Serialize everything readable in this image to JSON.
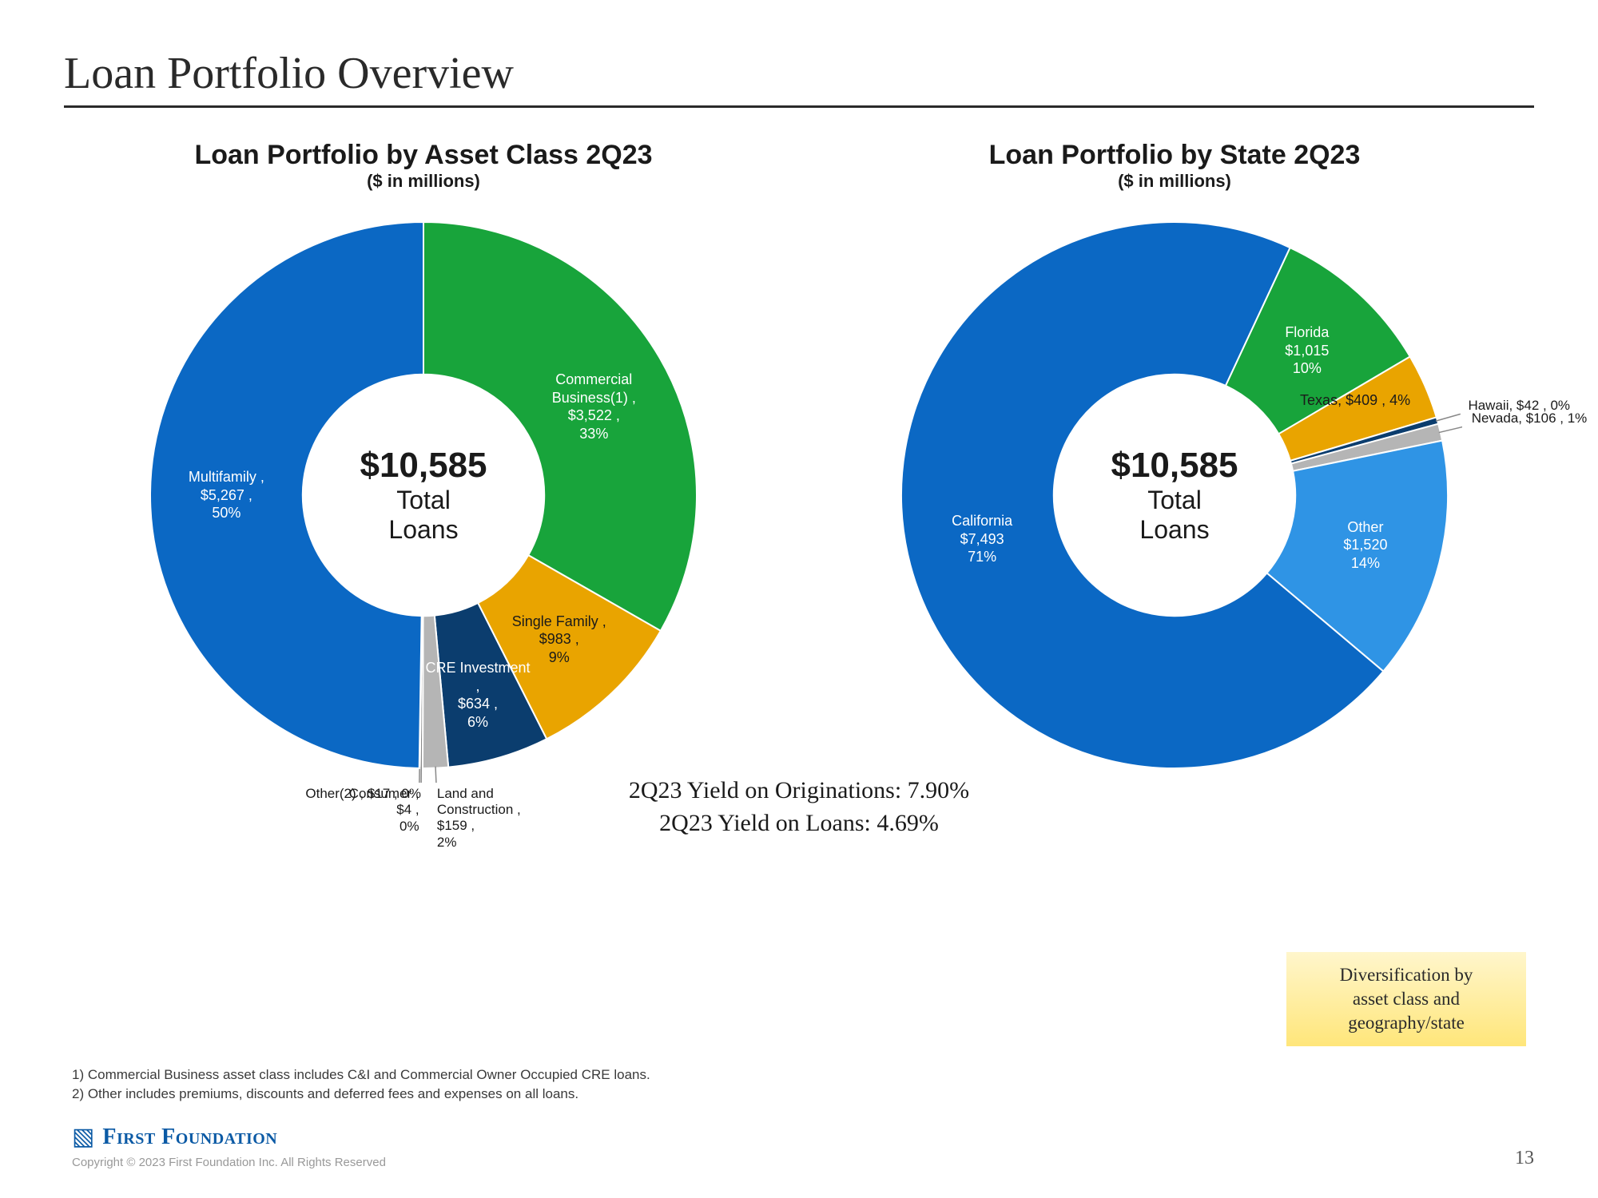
{
  "page_title": "Loan Portfolio Overview",
  "chart_left": {
    "type": "donut",
    "title": "Loan Portfolio by Asset Class 2Q23",
    "subtitle": "($ in millions)",
    "center_value": "$10,585",
    "center_text": "Total\nLoans",
    "inner_radius_ratio": 0.42,
    "outer_radius_ratio": 0.95,
    "start_angle_deg": -90,
    "background_color": "#ffffff",
    "slices": [
      {
        "name": "Commercial Business(1)",
        "value": 3522,
        "pct": 33,
        "color": "#18a43b",
        "label": "Commercial\nBusiness(1) ,\n$3,522 ,\n33%",
        "label_color": "#ffffff",
        "label_pos": "in"
      },
      {
        "name": "Single Family",
        "value": 983,
        "pct": 9,
        "color": "#e9a400",
        "label": "Single Family ,\n$983 ,\n9%",
        "label_color": "#1a1a1a",
        "label_pos": "in"
      },
      {
        "name": "CRE Investment",
        "value": 634,
        "pct": 6,
        "color": "#0b3d6e",
        "label": "CRE Investment ,\n$634 ,\n6%",
        "label_color": "#ffffff",
        "label_pos": "in"
      },
      {
        "name": "Land and Construction",
        "value": 159,
        "pct": 2,
        "color": "#b5b5b5",
        "label": "Land and\nConstruction ,\n$159 ,\n2%",
        "label_color": "#1a1a1a",
        "label_pos": "ext"
      },
      {
        "name": "Other(2)",
        "value": 17,
        "pct": 0,
        "color": "#8a8a8a",
        "label": "Other(2) , $17 , 0%",
        "label_color": "#1a1a1a",
        "label_pos": "ext"
      },
      {
        "name": "Consumer",
        "value": 4,
        "pct": 0,
        "color": "#c9c9c9",
        "label": "Consumer ,\n$4 ,\n0%",
        "label_color": "#1a1a1a",
        "label_pos": "ext"
      },
      {
        "name": "Multifamily",
        "value": 5267,
        "pct": 50,
        "color": "#0b68c4",
        "label": "Multifamily ,\n$5,267 ,\n50%",
        "label_color": "#ffffff",
        "label_pos": "in"
      }
    ]
  },
  "chart_right": {
    "type": "donut",
    "title": "Loan Portfolio by State 2Q23",
    "subtitle": "($ in millions)",
    "center_value": "$10,585",
    "center_text": "Total\nLoans",
    "inner_radius_ratio": 0.42,
    "outer_radius_ratio": 0.95,
    "start_angle_deg": -65,
    "background_color": "#ffffff",
    "slices": [
      {
        "name": "Florida",
        "value": 1015,
        "pct": 10,
        "color": "#18a43b",
        "label": "Florida\n$1,015\n10%",
        "label_color": "#ffffff",
        "label_pos": "in"
      },
      {
        "name": "Texas",
        "value": 409,
        "pct": 4,
        "color": "#e9a400",
        "label": "Texas, $409 , 4%",
        "label_color": "#1a1a1a",
        "label_pos": "in"
      },
      {
        "name": "Hawaii",
        "value": 42,
        "pct": 0,
        "color": "#0b3d6e",
        "label": "Hawaii, $42 , 0%",
        "label_color": "#1a1a1a",
        "label_pos": "ext"
      },
      {
        "name": "Nevada",
        "value": 106,
        "pct": 1,
        "color": "#b5b5b5",
        "label": "Nevada, $106 , 1%",
        "label_color": "#1a1a1a",
        "label_pos": "ext"
      },
      {
        "name": "Other",
        "value": 1520,
        "pct": 14,
        "color": "#2f94e5",
        "label": "Other\n$1,520\n14%",
        "label_color": "#ffffff",
        "label_pos": "in"
      },
      {
        "name": "California",
        "value": 7493,
        "pct": 71,
        "color": "#0b68c4",
        "label": "California\n$7,493\n71%",
        "label_color": "#ffffff",
        "label_pos": "in"
      }
    ]
  },
  "yield": {
    "line1": "2Q23 Yield on Originations: 7.90%",
    "line2": "2Q23 Yield on Loans: 4.69%"
  },
  "callout": "Diversification by\nasset class and\ngeography/state",
  "footnotes": [
    "1)     Commercial Business asset class includes C&I and Commercial Owner Occupied CRE loans.",
    "2)     Other includes premiums, discounts and deferred fees and expenses on all loans."
  ],
  "logo_text_first": "First",
  "logo_text_rest": "Foundation",
  "copyright": "Copyright © 2023 First Foundation Inc. All Rights Reserved",
  "page_number": "13",
  "fonts": {
    "serif": "Georgia",
    "sans": "Arial"
  }
}
